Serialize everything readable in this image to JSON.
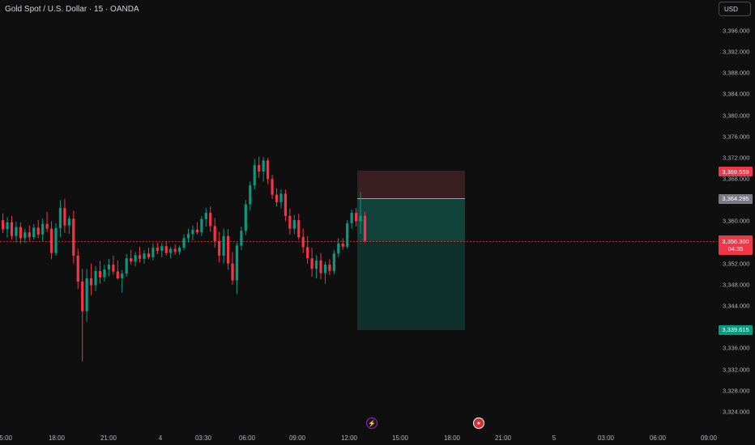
{
  "header": {
    "symbol_title": "Gold Spot / U.S. Dollar · 15 · OANDA"
  },
  "toolbar": {
    "currency_label": "USD"
  },
  "price_axis": {
    "labels": [
      "3,396.000",
      "3,392.000",
      "3,388.000",
      "3,384.000",
      "3,380.000",
      "3,376.000",
      "3,372.000",
      "3,368.000",
      "3,360.000",
      "3,352.000",
      "3,348.000",
      "3,344.000",
      "3,336.000",
      "3,332.000",
      "3,328.000",
      "3,324.000"
    ],
    "values": [
      3396,
      3392,
      3388,
      3384,
      3380,
      3376,
      3372,
      3368,
      3360,
      3352,
      3348,
      3344,
      3336,
      3332,
      3328,
      3324
    ]
  },
  "time_axis": {
    "labels": [
      "15:00",
      "18:00",
      "21:00",
      "4",
      "03:30",
      "06:00",
      "09:00",
      "12:00",
      "15:00",
      "18:00",
      "21:00",
      "5",
      "03:00",
      "06:00",
      "09:00"
    ]
  },
  "position": {
    "stop_price": "3,369.559",
    "entry_price": "3,364.295",
    "target_price": "3,339.615",
    "stop_value": 3369.559,
    "entry_value": 3364.295,
    "target_value": 3339.615
  },
  "current_price": {
    "price": "3,356.300",
    "countdown": "04:35",
    "value": 3356.3
  },
  "events": {
    "bolt_icon": "lightning-icon",
    "flag_icon": "us-flag-icon"
  },
  "colors": {
    "background": "#0f0f0f",
    "up": "#089981",
    "down": "#f23645",
    "stop_zone": "#3a1f22",
    "target_zone": "#10302b",
    "target_zone_light": "#12433a"
  },
  "chart_data": {
    "type": "candlestick",
    "series": [
      {
        "o": 3360.2,
        "h": 3361.5,
        "l": 3357.8,
        "c": 3358.5
      },
      {
        "o": 3358.5,
        "h": 3360.8,
        "l": 3356.9,
        "c": 3359.8
      },
      {
        "o": 3359.8,
        "h": 3361.0,
        "l": 3356.5,
        "c": 3357.2
      },
      {
        "o": 3357.2,
        "h": 3359.9,
        "l": 3356.0,
        "c": 3358.9
      },
      {
        "o": 3358.9,
        "h": 3359.8,
        "l": 3355.8,
        "c": 3356.8
      },
      {
        "o": 3356.8,
        "h": 3358.6,
        "l": 3355.9,
        "c": 3357.9
      },
      {
        "o": 3357.9,
        "h": 3359.2,
        "l": 3356.3,
        "c": 3357.0
      },
      {
        "o": 3357.0,
        "h": 3359.5,
        "l": 3356.5,
        "c": 3358.8
      },
      {
        "o": 3358.8,
        "h": 3360.2,
        "l": 3356.8,
        "c": 3357.5
      },
      {
        "o": 3357.5,
        "h": 3360.5,
        "l": 3356.2,
        "c": 3359.5
      },
      {
        "o": 3359.5,
        "h": 3361.8,
        "l": 3358.0,
        "c": 3358.6
      },
      {
        "o": 3358.6,
        "h": 3360.0,
        "l": 3352.8,
        "c": 3354.0
      },
      {
        "o": 3354.0,
        "h": 3359.6,
        "l": 3353.5,
        "c": 3358.7
      },
      {
        "o": 3358.7,
        "h": 3364.0,
        "l": 3357.0,
        "c": 3362.5
      },
      {
        "o": 3362.5,
        "h": 3364.2,
        "l": 3357.8,
        "c": 3359.2
      },
      {
        "o": 3359.2,
        "h": 3361.0,
        "l": 3357.6,
        "c": 3360.5
      },
      {
        "o": 3360.5,
        "h": 3362.0,
        "l": 3352.0,
        "c": 3353.5
      },
      {
        "o": 3353.5,
        "h": 3354.8,
        "l": 3347.2,
        "c": 3348.6
      },
      {
        "o": 3348.6,
        "h": 3351.0,
        "l": 3333.5,
        "c": 3343.0
      },
      {
        "o": 3343.0,
        "h": 3351.0,
        "l": 3341.0,
        "c": 3349.2
      },
      {
        "o": 3349.2,
        "h": 3352.0,
        "l": 3346.0,
        "c": 3347.9
      },
      {
        "o": 3347.9,
        "h": 3351.5,
        "l": 3346.8,
        "c": 3350.6
      },
      {
        "o": 3350.6,
        "h": 3352.5,
        "l": 3348.2,
        "c": 3349.4
      },
      {
        "o": 3349.4,
        "h": 3351.8,
        "l": 3348.6,
        "c": 3350.9
      },
      {
        "o": 3350.9,
        "h": 3352.9,
        "l": 3349.6,
        "c": 3351.8
      },
      {
        "o": 3351.8,
        "h": 3353.5,
        "l": 3349.9,
        "c": 3350.5
      },
      {
        "o": 3350.5,
        "h": 3352.6,
        "l": 3349.0,
        "c": 3349.2
      },
      {
        "o": 3349.2,
        "h": 3350.8,
        "l": 3346.5,
        "c": 3350.1
      },
      {
        "o": 3350.1,
        "h": 3353.8,
        "l": 3349.5,
        "c": 3353.0
      },
      {
        "o": 3353.0,
        "h": 3354.6,
        "l": 3351.8,
        "c": 3352.4
      },
      {
        "o": 3352.4,
        "h": 3354.2,
        "l": 3351.5,
        "c": 3353.6
      },
      {
        "o": 3353.6,
        "h": 3355.2,
        "l": 3352.2,
        "c": 3352.9
      },
      {
        "o": 3352.9,
        "h": 3354.5,
        "l": 3352.0,
        "c": 3353.9
      },
      {
        "o": 3353.9,
        "h": 3355.0,
        "l": 3352.8,
        "c": 3353.2
      },
      {
        "o": 3353.2,
        "h": 3355.8,
        "l": 3352.6,
        "c": 3355.0
      },
      {
        "o": 3355.0,
        "h": 3356.0,
        "l": 3353.8,
        "c": 3354.4
      },
      {
        "o": 3354.4,
        "h": 3355.9,
        "l": 3353.2,
        "c": 3355.3
      },
      {
        "o": 3355.3,
        "h": 3356.2,
        "l": 3353.5,
        "c": 3354.0
      },
      {
        "o": 3354.0,
        "h": 3355.2,
        "l": 3353.0,
        "c": 3354.8
      },
      {
        "o": 3354.8,
        "h": 3355.6,
        "l": 3353.7,
        "c": 3354.2
      },
      {
        "o": 3354.2,
        "h": 3355.4,
        "l": 3353.6,
        "c": 3355.0
      },
      {
        "o": 3355.0,
        "h": 3357.5,
        "l": 3354.5,
        "c": 3356.8
      },
      {
        "o": 3356.8,
        "h": 3358.6,
        "l": 3356.0,
        "c": 3357.6
      },
      {
        "o": 3357.6,
        "h": 3359.2,
        "l": 3356.4,
        "c": 3358.4
      },
      {
        "o": 3358.4,
        "h": 3359.8,
        "l": 3357.5,
        "c": 3357.9
      },
      {
        "o": 3357.9,
        "h": 3361.0,
        "l": 3357.2,
        "c": 3360.4
      },
      {
        "o": 3360.4,
        "h": 3362.5,
        "l": 3359.0,
        "c": 3361.6
      },
      {
        "o": 3361.6,
        "h": 3362.8,
        "l": 3358.0,
        "c": 3359.1
      },
      {
        "o": 3359.1,
        "h": 3360.6,
        "l": 3355.0,
        "c": 3356.2
      },
      {
        "o": 3356.2,
        "h": 3358.0,
        "l": 3352.2,
        "c": 3353.5
      },
      {
        "o": 3353.5,
        "h": 3358.6,
        "l": 3352.0,
        "c": 3357.2
      },
      {
        "o": 3357.2,
        "h": 3358.5,
        "l": 3350.8,
        "c": 3352.0
      },
      {
        "o": 3352.0,
        "h": 3354.2,
        "l": 3348.0,
        "c": 3348.8
      },
      {
        "o": 3348.8,
        "h": 3356.0,
        "l": 3346.2,
        "c": 3355.4
      },
      {
        "o": 3355.4,
        "h": 3359.0,
        "l": 3354.6,
        "c": 3358.2
      },
      {
        "o": 3358.2,
        "h": 3364.0,
        "l": 3357.4,
        "c": 3363.2
      },
      {
        "o": 3363.2,
        "h": 3367.5,
        "l": 3362.0,
        "c": 3366.8
      },
      {
        "o": 3366.8,
        "h": 3371.8,
        "l": 3366.0,
        "c": 3370.6
      },
      {
        "o": 3370.6,
        "h": 3372.2,
        "l": 3368.2,
        "c": 3369.4
      },
      {
        "o": 3369.4,
        "h": 3372.1,
        "l": 3367.5,
        "c": 3371.5
      },
      {
        "o": 3371.5,
        "h": 3372.0,
        "l": 3367.0,
        "c": 3368.0
      },
      {
        "o": 3368.0,
        "h": 3368.8,
        "l": 3364.2,
        "c": 3365.0
      },
      {
        "o": 3365.0,
        "h": 3366.2,
        "l": 3362.8,
        "c": 3363.6
      },
      {
        "o": 3363.6,
        "h": 3366.0,
        "l": 3362.4,
        "c": 3365.2
      },
      {
        "o": 3365.2,
        "h": 3366.0,
        "l": 3360.0,
        "c": 3361.0
      },
      {
        "o": 3361.0,
        "h": 3362.4,
        "l": 3357.5,
        "c": 3358.6
      },
      {
        "o": 3358.6,
        "h": 3361.2,
        "l": 3357.6,
        "c": 3360.2
      },
      {
        "o": 3360.2,
        "h": 3361.4,
        "l": 3356.5,
        "c": 3357.0
      },
      {
        "o": 3357.0,
        "h": 3358.6,
        "l": 3354.0,
        "c": 3355.1
      },
      {
        "o": 3355.1,
        "h": 3357.2,
        "l": 3352.0,
        "c": 3353.0
      },
      {
        "o": 3353.0,
        "h": 3355.0,
        "l": 3349.5,
        "c": 3351.0
      },
      {
        "o": 3351.0,
        "h": 3353.6,
        "l": 3349.2,
        "c": 3352.6
      },
      {
        "o": 3352.6,
        "h": 3354.0,
        "l": 3349.0,
        "c": 3350.2
      },
      {
        "o": 3350.2,
        "h": 3352.4,
        "l": 3348.2,
        "c": 3351.8
      },
      {
        "o": 3351.8,
        "h": 3352.8,
        "l": 3349.8,
        "c": 3350.6
      },
      {
        "o": 3350.6,
        "h": 3354.6,
        "l": 3350.0,
        "c": 3353.9
      },
      {
        "o": 3353.9,
        "h": 3356.8,
        "l": 3353.2,
        "c": 3355.8
      },
      {
        "o": 3355.8,
        "h": 3356.8,
        "l": 3354.6,
        "c": 3355.2
      },
      {
        "o": 3355.2,
        "h": 3360.2,
        "l": 3354.8,
        "c": 3359.6
      },
      {
        "o": 3359.6,
        "h": 3362.2,
        "l": 3358.6,
        "c": 3361.6
      },
      {
        "o": 3361.6,
        "h": 3362.5,
        "l": 3359.0,
        "c": 3360.0
      },
      {
        "o": 3360.0,
        "h": 3365.5,
        "l": 3357.6,
        "c": 3361.0
      },
      {
        "o": 3361.0,
        "h": 3361.8,
        "l": 3356.0,
        "c": 3356.3
      }
    ]
  }
}
